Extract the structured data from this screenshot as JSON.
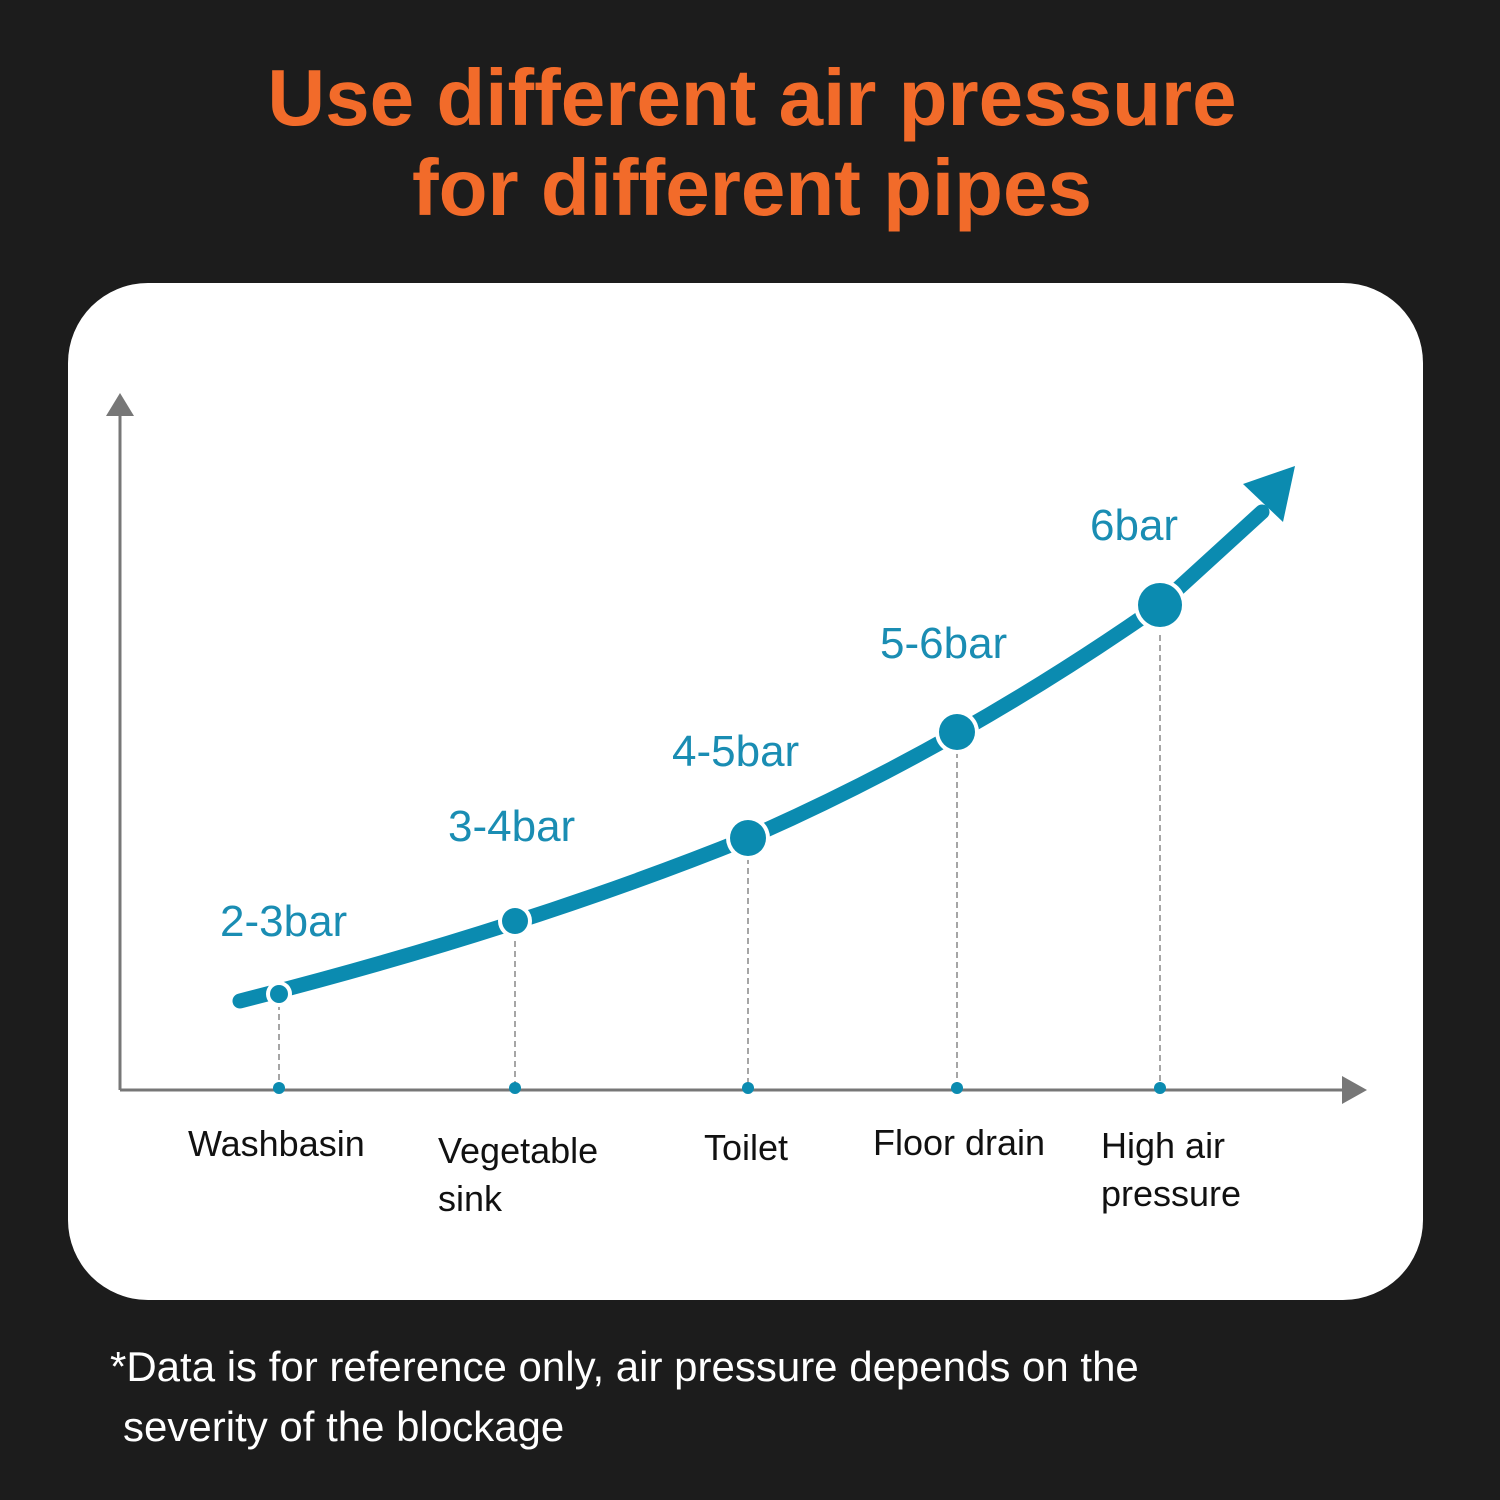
{
  "title": [
    "Use different air pressure",
    "for different pipes"
  ],
  "points": [
    {
      "label": "2-3bar",
      "category": [
        "Washbasin"
      ]
    },
    {
      "label": "3-4bar",
      "category": [
        "Vegetable",
        "sink"
      ]
    },
    {
      "label": "4-5bar",
      "category": [
        "Toilet"
      ]
    },
    {
      "label": "5-6bar",
      "category": [
        "Floor drain"
      ]
    },
    {
      "label": "6bar",
      "category": [
        "High air",
        "pressure"
      ]
    }
  ],
  "footnote": [
    "*Data is for reference only, air pressure depends on the",
    "severity of the blockage"
  ]
}
